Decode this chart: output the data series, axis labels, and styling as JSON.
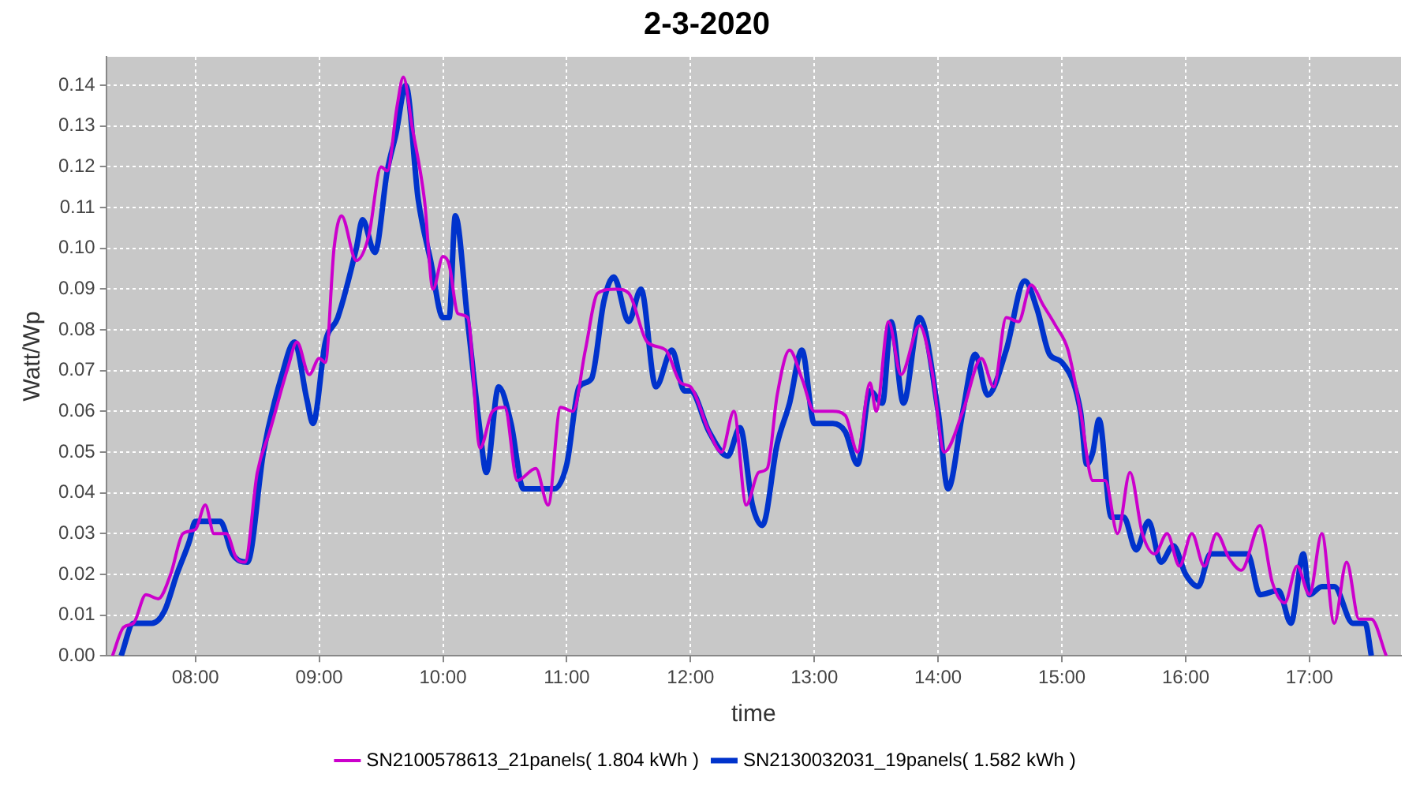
{
  "chart_data": {
    "type": "line",
    "title": "2-3-2020",
    "xlabel": "time",
    "ylabel": "Watt/Wp",
    "xlim": [
      7.28,
      17.74
    ],
    "xticks": [
      {
        "value": 8,
        "label": "08:00"
      },
      {
        "value": 9,
        "label": "09:00"
      },
      {
        "value": 10,
        "label": "10:00"
      },
      {
        "value": 11,
        "label": "11:00"
      },
      {
        "value": 12,
        "label": "12:00"
      },
      {
        "value": 13,
        "label": "13:00"
      },
      {
        "value": 14,
        "label": "14:00"
      },
      {
        "value": 15,
        "label": "15:00"
      },
      {
        "value": 16,
        "label": "16:00"
      },
      {
        "value": 17,
        "label": "17:00"
      }
    ],
    "ylim": [
      0,
      0.147
    ],
    "yticks": [
      {
        "value": 0,
        "label": "0.00"
      },
      {
        "value": 0.01,
        "label": "0.01"
      },
      {
        "value": 0.02,
        "label": "0.02"
      },
      {
        "value": 0.03,
        "label": "0.03"
      },
      {
        "value": 0.04,
        "label": "0.04"
      },
      {
        "value": 0.05,
        "label": "0.05"
      },
      {
        "value": 0.06,
        "label": "0.06"
      },
      {
        "value": 0.07,
        "label": "0.07"
      },
      {
        "value": 0.08,
        "label": "0.08"
      },
      {
        "value": 0.09,
        "label": "0.09"
      },
      {
        "value": 0.1,
        "label": "0.10"
      },
      {
        "value": 0.11,
        "label": "0.11"
      },
      {
        "value": 0.12,
        "label": "0.12"
      },
      {
        "value": 0.13,
        "label": "0.13"
      },
      {
        "value": 0.14,
        "label": "0.14"
      }
    ],
    "grid": true,
    "legend": "bottom",
    "marker": "none",
    "line_style": "solid",
    "series": [
      {
        "name": "SN2100578613_21panels( 1.804 kWh )",
        "color": "#cc00cc",
        "x": [
          7.33,
          7.42,
          7.5,
          7.6,
          7.7,
          7.8,
          7.9,
          8.0,
          8.08,
          8.15,
          8.25,
          8.33,
          8.4,
          8.5,
          8.6,
          8.75,
          8.82,
          8.92,
          9.0,
          9.05,
          9.12,
          9.18,
          9.3,
          9.4,
          9.5,
          9.55,
          9.63,
          9.68,
          9.75,
          9.85,
          9.92,
          10.0,
          10.05,
          10.12,
          10.2,
          10.3,
          10.4,
          10.5,
          10.6,
          10.75,
          10.85,
          10.95,
          11.05,
          11.15,
          11.25,
          11.4,
          11.5,
          11.65,
          11.8,
          11.92,
          12.0,
          12.15,
          12.25,
          12.35,
          12.45,
          12.55,
          12.62,
          12.7,
          12.8,
          12.9,
          13.0,
          13.15,
          13.25,
          13.35,
          13.45,
          13.5,
          13.6,
          13.7,
          13.85,
          13.95,
          14.05,
          14.2,
          14.35,
          14.45,
          14.55,
          14.65,
          14.75,
          14.85,
          14.95,
          15.05,
          15.15,
          15.25,
          15.35,
          15.45,
          15.55,
          15.65,
          15.75,
          15.85,
          15.95,
          16.05,
          16.15,
          16.25,
          16.35,
          16.45,
          16.6,
          16.7,
          16.8,
          16.9,
          17.0,
          17.1,
          17.2,
          17.3,
          17.4,
          17.5,
          17.62
        ],
        "values": [
          0.0,
          0.007,
          0.008,
          0.015,
          0.014,
          0.02,
          0.03,
          0.031,
          0.037,
          0.03,
          0.03,
          0.024,
          0.023,
          0.045,
          0.055,
          0.071,
          0.077,
          0.069,
          0.073,
          0.072,
          0.1,
          0.108,
          0.097,
          0.103,
          0.12,
          0.119,
          0.135,
          0.142,
          0.13,
          0.112,
          0.09,
          0.098,
          0.096,
          0.084,
          0.083,
          0.051,
          0.06,
          0.061,
          0.043,
          0.046,
          0.037,
          0.061,
          0.06,
          0.075,
          0.089,
          0.09,
          0.089,
          0.077,
          0.075,
          0.067,
          0.066,
          0.055,
          0.05,
          0.06,
          0.037,
          0.045,
          0.046,
          0.064,
          0.075,
          0.068,
          0.06,
          0.06,
          0.059,
          0.05,
          0.067,
          0.06,
          0.082,
          0.069,
          0.081,
          0.07,
          0.05,
          0.06,
          0.073,
          0.066,
          0.083,
          0.082,
          0.091,
          0.086,
          0.081,
          0.075,
          0.06,
          0.043,
          0.043,
          0.03,
          0.045,
          0.03,
          0.025,
          0.03,
          0.022,
          0.03,
          0.022,
          0.03,
          0.024,
          0.021,
          0.032,
          0.018,
          0.013,
          0.022,
          0.015,
          0.03,
          0.008,
          0.023,
          0.009,
          0.009,
          0.0
        ]
      },
      {
        "name": "SN2130032031_19panels( 1.582 kWh )",
        "color": "#0033cc",
        "x": [
          7.4,
          7.5,
          7.65,
          7.75,
          7.85,
          7.95,
          8.0,
          8.1,
          8.2,
          8.3,
          8.42,
          8.55,
          8.7,
          8.8,
          8.9,
          8.95,
          9.05,
          9.15,
          9.3,
          9.35,
          9.45,
          9.55,
          9.62,
          9.7,
          9.8,
          9.9,
          10.0,
          10.05,
          10.1,
          10.2,
          10.3,
          10.35,
          10.45,
          10.55,
          10.65,
          10.9,
          11.0,
          11.1,
          11.2,
          11.3,
          11.38,
          11.5,
          11.6,
          11.72,
          11.85,
          11.95,
          12.0,
          12.15,
          12.3,
          12.4,
          12.5,
          12.58,
          12.7,
          12.8,
          12.9,
          13.0,
          13.15,
          13.25,
          13.35,
          13.45,
          13.55,
          13.62,
          13.72,
          13.85,
          14.0,
          14.08,
          14.2,
          14.3,
          14.4,
          14.55,
          14.7,
          14.8,
          14.9,
          15.0,
          15.15,
          15.2,
          15.25,
          15.3,
          15.4,
          15.5,
          15.6,
          15.7,
          15.8,
          15.9,
          16.0,
          16.1,
          16.2,
          16.5,
          16.6,
          16.75,
          16.85,
          16.95,
          17.0,
          17.1,
          17.2,
          17.35,
          17.45,
          17.5
        ],
        "values": [
          0.0,
          0.008,
          0.008,
          0.011,
          0.02,
          0.028,
          0.033,
          0.033,
          0.033,
          0.025,
          0.023,
          0.05,
          0.069,
          0.077,
          0.063,
          0.057,
          0.077,
          0.083,
          0.1,
          0.107,
          0.099,
          0.119,
          0.128,
          0.14,
          0.112,
          0.097,
          0.083,
          0.083,
          0.108,
          0.082,
          0.055,
          0.045,
          0.066,
          0.057,
          0.041,
          0.041,
          0.047,
          0.066,
          0.068,
          0.087,
          0.093,
          0.082,
          0.09,
          0.066,
          0.075,
          0.065,
          0.065,
          0.055,
          0.049,
          0.056,
          0.037,
          0.032,
          0.052,
          0.062,
          0.075,
          0.057,
          0.057,
          0.055,
          0.047,
          0.065,
          0.062,
          0.082,
          0.062,
          0.083,
          0.06,
          0.041,
          0.06,
          0.074,
          0.064,
          0.075,
          0.092,
          0.085,
          0.074,
          0.072,
          0.06,
          0.047,
          0.05,
          0.058,
          0.034,
          0.034,
          0.026,
          0.033,
          0.023,
          0.027,
          0.02,
          0.017,
          0.025,
          0.025,
          0.015,
          0.016,
          0.008,
          0.025,
          0.015,
          0.017,
          0.017,
          0.008,
          0.008,
          0.0
        ]
      }
    ]
  }
}
